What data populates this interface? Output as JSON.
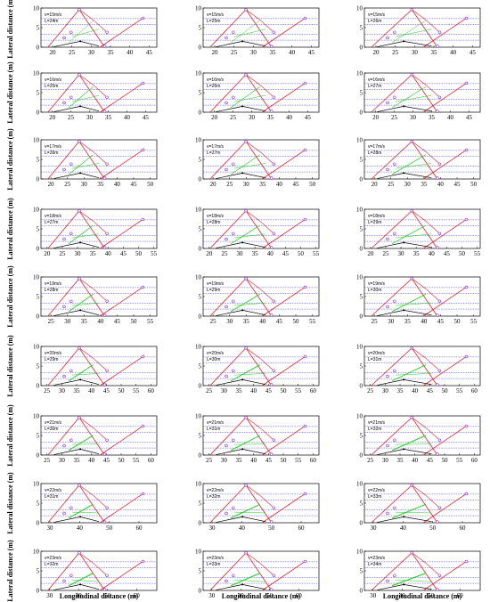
{
  "figure": {
    "ylabel": "Lateral distance (m)",
    "xlabel": "Longitudinal distance (m)",
    "colors": {
      "boundary": "#e8202a",
      "reference": "#3a3af0",
      "path": "#22cc22",
      "vehicle": "#000000",
      "marker": "#8a2be2"
    }
  },
  "chart_data": [
    {
      "type": "line",
      "v": "v=15m/s",
      "L": "L=24m",
      "ylim": [
        0,
        10
      ],
      "yticks": [
        0,
        5,
        10
      ],
      "xlim": [
        17,
        47
      ],
      "xticks": [
        20,
        25,
        30,
        35,
        40,
        45
      ]
    },
    {
      "type": "line",
      "v": "v=15m/s",
      "L": "L=25m",
      "ylim": [
        0,
        10
      ],
      "yticks": [
        0,
        5,
        10
      ],
      "xlim": [
        17,
        47
      ],
      "xticks": [
        20,
        25,
        30,
        35,
        40,
        45
      ]
    },
    {
      "type": "line",
      "v": "v=15m/s",
      "L": "L=26m",
      "ylim": [
        0,
        10
      ],
      "yticks": [
        0,
        5,
        10
      ],
      "xlim": [
        17,
        47
      ],
      "xticks": [
        20,
        25,
        30,
        35,
        40,
        45
      ]
    },
    {
      "type": "line",
      "v": "v=16m/s",
      "L": "L=25m",
      "ylim": [
        0,
        10
      ],
      "yticks": [
        0,
        5,
        10
      ],
      "xlim": [
        17,
        48
      ],
      "xticks": [
        20,
        25,
        30,
        35,
        40,
        45
      ]
    },
    {
      "type": "line",
      "v": "v=16m/s",
      "L": "L=26m",
      "ylim": [
        0,
        10
      ],
      "yticks": [
        0,
        5,
        10
      ],
      "xlim": [
        17,
        48
      ],
      "xticks": [
        20,
        25,
        30,
        35,
        40,
        45
      ]
    },
    {
      "type": "line",
      "v": "v=16m/s",
      "L": "L=27m",
      "ylim": [
        0,
        10
      ],
      "yticks": [
        0,
        5,
        10
      ],
      "xlim": [
        17,
        48
      ],
      "xticks": [
        20,
        25,
        30,
        35,
        40,
        45
      ]
    },
    {
      "type": "line",
      "v": "v=17m/s",
      "L": "L=26m",
      "ylim": [
        0,
        10
      ],
      "yticks": [
        0,
        5,
        10
      ],
      "xlim": [
        17,
        52
      ],
      "xticks": [
        20,
        25,
        30,
        35,
        40,
        45,
        50
      ]
    },
    {
      "type": "line",
      "v": "v=17m/s",
      "L": "L=27m",
      "ylim": [
        0,
        10
      ],
      "yticks": [
        0,
        5,
        10
      ],
      "xlim": [
        17,
        52
      ],
      "xticks": [
        20,
        25,
        30,
        35,
        40,
        45,
        50
      ]
    },
    {
      "type": "line",
      "v": "v=17m/s",
      "L": "L=28m",
      "ylim": [
        0,
        10
      ],
      "yticks": [
        0,
        5,
        10
      ],
      "xlim": [
        17,
        52
      ],
      "xticks": [
        20,
        25,
        30,
        35,
        40,
        45,
        50
      ]
    },
    {
      "type": "line",
      "v": "v=18m/s",
      "L": "L=27m",
      "ylim": [
        0,
        10
      ],
      "yticks": [
        0,
        5,
        10
      ],
      "xlim": [
        18,
        56
      ],
      "xticks": [
        20,
        25,
        30,
        35,
        40,
        45,
        50,
        55
      ]
    },
    {
      "type": "line",
      "v": "v=18m/s",
      "L": "L=28m",
      "ylim": [
        0,
        10
      ],
      "yticks": [
        0,
        5,
        10
      ],
      "xlim": [
        18,
        56
      ],
      "xticks": [
        20,
        25,
        30,
        35,
        40,
        45,
        50,
        55
      ]
    },
    {
      "type": "line",
      "v": "v=18m/s",
      "L": "L=29m",
      "ylim": [
        0,
        10
      ],
      "yticks": [
        0,
        5,
        10
      ],
      "xlim": [
        18,
        56
      ],
      "xticks": [
        20,
        25,
        30,
        35,
        40,
        45,
        50,
        55
      ]
    },
    {
      "type": "line",
      "v": "v=19m/s",
      "L": "L=28m",
      "ylim": [
        0,
        10
      ],
      "yticks": [
        0,
        5,
        10
      ],
      "xlim": [
        22,
        57
      ],
      "xticks": [
        25,
        30,
        35,
        40,
        45,
        50,
        55
      ]
    },
    {
      "type": "line",
      "v": "v=19m/s",
      "L": "L=29m",
      "ylim": [
        0,
        10
      ],
      "yticks": [
        0,
        5,
        10
      ],
      "xlim": [
        22,
        57
      ],
      "xticks": [
        25,
        30,
        35,
        40,
        45,
        50,
        55
      ]
    },
    {
      "type": "line",
      "v": "v=19m/s",
      "L": "L=30m",
      "ylim": [
        0,
        10
      ],
      "yticks": [
        0,
        5,
        10
      ],
      "xlim": [
        22,
        57
      ],
      "xticks": [
        25,
        30,
        35,
        40,
        45,
        50,
        55
      ]
    },
    {
      "type": "line",
      "v": "v=20m/s",
      "L": "L=29m",
      "ylim": [
        0,
        10
      ],
      "yticks": [
        0,
        5,
        10
      ],
      "xlim": [
        23,
        62
      ],
      "xticks": [
        25,
        30,
        35,
        40,
        45,
        50,
        55,
        60
      ]
    },
    {
      "type": "line",
      "v": "v=20m/s",
      "L": "L=30m",
      "ylim": [
        0,
        10
      ],
      "yticks": [
        0,
        5,
        10
      ],
      "xlim": [
        23,
        62
      ],
      "xticks": [
        25,
        30,
        35,
        40,
        45,
        50,
        55,
        60
      ]
    },
    {
      "type": "line",
      "v": "v=20m/s",
      "L": "L=31m",
      "ylim": [
        0,
        10
      ],
      "yticks": [
        0,
        5,
        10
      ],
      "xlim": [
        23,
        62
      ],
      "xticks": [
        25,
        30,
        35,
        40,
        45,
        50,
        55,
        60
      ]
    },
    {
      "type": "line",
      "v": "v=21m/s",
      "L": "L=30m",
      "ylim": [
        0,
        10
      ],
      "yticks": [
        0,
        5,
        10
      ],
      "xlim": [
        23,
        62
      ],
      "xticks": [
        25,
        30,
        35,
        40,
        45,
        50,
        55,
        60
      ]
    },
    {
      "type": "line",
      "v": "v=21m/s",
      "L": "L=31m",
      "ylim": [
        0,
        10
      ],
      "yticks": [
        0,
        5,
        10
      ],
      "xlim": [
        23,
        62
      ],
      "xticks": [
        25,
        30,
        35,
        40,
        45,
        50,
        55,
        60
      ]
    },
    {
      "type": "line",
      "v": "v=21m/s",
      "L": "L=32m",
      "ylim": [
        0,
        10
      ],
      "yticks": [
        0,
        5,
        10
      ],
      "xlim": [
        23,
        62
      ],
      "xticks": [
        25,
        30,
        35,
        40,
        45,
        50,
        55,
        60
      ]
    },
    {
      "type": "line",
      "v": "v=22m/s",
      "L": "L=31m",
      "ylim": [
        0,
        10
      ],
      "yticks": [
        0,
        5,
        10
      ],
      "xlim": [
        27,
        66
      ],
      "xticks": [
        30,
        40,
        50,
        60
      ]
    },
    {
      "type": "line",
      "v": "v=22m/s",
      "L": "L=32m",
      "ylim": [
        0,
        10
      ],
      "yticks": [
        0,
        5,
        10
      ],
      "xlim": [
        27,
        66
      ],
      "xticks": [
        30,
        40,
        50,
        60
      ]
    },
    {
      "type": "line",
      "v": "v=22m/s",
      "L": "L=33m",
      "ylim": [
        0,
        10
      ],
      "yticks": [
        0,
        5,
        10
      ],
      "xlim": [
        27,
        66
      ],
      "xticks": [
        30,
        40,
        50,
        60
      ]
    },
    {
      "type": "line",
      "v": "v=23m/s",
      "L": "L=32m",
      "ylim": [
        0,
        10
      ],
      "yticks": [
        0,
        5,
        10
      ],
      "xlim": [
        27,
        67
      ],
      "xticks": [
        30,
        40,
        50,
        60
      ]
    },
    {
      "type": "line",
      "v": "v=23m/s",
      "L": "L=33m",
      "ylim": [
        0,
        10
      ],
      "yticks": [
        0,
        5,
        10
      ],
      "xlim": [
        27,
        67
      ],
      "xticks": [
        30,
        40,
        50,
        60
      ]
    },
    {
      "type": "line",
      "v": "v=23m/s",
      "L": "L=34m",
      "ylim": [
        0,
        10
      ],
      "yticks": [
        0,
        5,
        10
      ],
      "xlim": [
        27,
        67
      ],
      "xticks": [
        30,
        40,
        50,
        60
      ]
    }
  ]
}
